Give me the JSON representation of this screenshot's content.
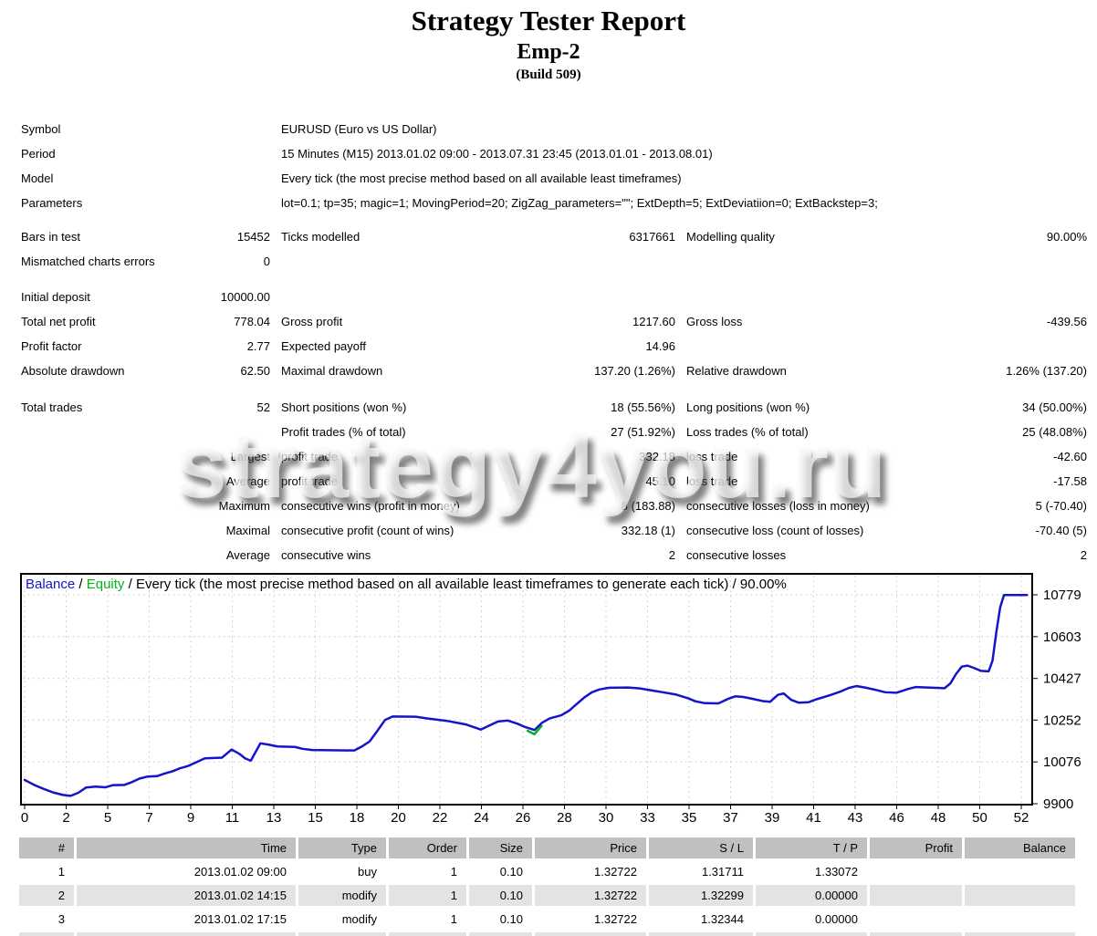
{
  "header": {
    "title": "Strategy Tester Report",
    "subtitle": "Emp-2",
    "build": "(Build 509)"
  },
  "watermark": {
    "text": "strategy4you.ru"
  },
  "info_rows": [
    {
      "label": "Symbol",
      "value": "EURUSD (Euro vs US Dollar)"
    },
    {
      "label": "Period",
      "value": "15 Minutes (M15) 2013.01.02 09:00 - 2013.07.31 23:45 (2013.01.01 - 2013.08.01)"
    },
    {
      "label": "Model",
      "value": "Every tick (the most precise method based on all available least timeframes)"
    },
    {
      "label": "Parameters",
      "value": "lot=0.1; tp=35; magic=1; MovingPeriod=20; ZigZag_parameters=\"\"; ExtDepth=5; ExtDeviatiion=0; ExtBackstep=3;"
    }
  ],
  "stats": {
    "groups": [
      {
        "name": "modelling",
        "rows": [
          [
            "Bars in test",
            "15452",
            "Ticks modelled",
            "6317661",
            "Modelling quality",
            "90.00%"
          ],
          [
            "Mismatched charts errors",
            "0",
            "",
            "",
            "",
            ""
          ]
        ]
      },
      {
        "name": "profit",
        "rows": [
          [
            "Initial deposit",
            "10000.00",
            "",
            "",
            "",
            ""
          ],
          [
            "Total net profit",
            "778.04",
            "Gross profit",
            "1217.60",
            "Gross loss",
            "-439.56"
          ],
          [
            "Profit factor",
            "2.77",
            "Expected payoff",
            "14.96",
            "",
            ""
          ],
          [
            "Absolute drawdown",
            "62.50",
            "Maximal drawdown",
            "137.20 (1.26%)",
            "Relative drawdown",
            "1.26% (137.20)"
          ]
        ]
      },
      {
        "name": "trades",
        "rows": [
          [
            "Total trades",
            "52",
            "Short positions (won %)",
            "18 (55.56%)",
            "Long positions (won %)",
            "34 (50.00%)"
          ],
          [
            "",
            "",
            "Profit trades (% of total)",
            "27 (51.92%)",
            "Loss trades (% of total)",
            "25 (48.08%)"
          ],
          [
            "",
            "Largest",
            "profit trade",
            "332.18",
            "loss trade",
            "-42.60"
          ],
          [
            "",
            "Average",
            "profit trade",
            "45.10",
            "loss trade",
            "-17.58"
          ],
          [
            "",
            "Maximum",
            "consecutive wins (profit in money)",
            "8 (183.88)",
            "consecutive losses (loss in money)",
            "5 (-70.40)"
          ],
          [
            "",
            "Maximal",
            "consecutive profit (count of wins)",
            "332.18 (1)",
            "consecutive loss (count of losses)",
            "-70.40 (5)"
          ],
          [
            "",
            "Average",
            "consecutive wins",
            "2",
            "consecutive losses",
            "2"
          ]
        ]
      }
    ]
  },
  "chart_data": {
    "type": "line",
    "legend": {
      "balance_label": "Balance",
      "separator1": " / ",
      "equity_label": "Equity",
      "description": " / Every tick (the most precise method based on all available least timeframes to generate each tick) / 90.00%"
    },
    "colors": {
      "balance": "#1414c8",
      "equity": "#00b41e",
      "grid": "#c6c6c6",
      "axis": "#000000"
    },
    "ylim": [
      9900,
      10875
    ],
    "xlim": [
      0,
      52.5
    ],
    "grid": true,
    "legend_position": "top-left",
    "y_ticks": [
      10779,
      10603,
      10427,
      10252,
      10076,
      9900
    ],
    "x_tick_labels": [
      "0",
      "2",
      "5",
      "7",
      "9",
      "11",
      "13",
      "15",
      "18",
      "20",
      "22",
      "24",
      "26",
      "28",
      "30",
      "33",
      "35",
      "37",
      "39",
      "41",
      "43",
      "46",
      "48",
      "50",
      "52"
    ],
    "initial_deposit": 10000.0,
    "final_balance": 10778.04,
    "series": [
      {
        "name": "Balance",
        "color": "#1414c8",
        "points": [
          [
            0,
            10000
          ],
          [
            0.5,
            9979
          ],
          [
            1,
            9962
          ],
          [
            1.5,
            9947
          ],
          [
            2,
            9937
          ],
          [
            2.4,
            9933
          ],
          [
            2.8,
            9946
          ],
          [
            3.2,
            9968
          ],
          [
            3.7,
            9972
          ],
          [
            4.2,
            9969
          ],
          [
            4.6,
            9978
          ],
          [
            5.2,
            9979
          ],
          [
            5.6,
            9991
          ],
          [
            6,
            10006
          ],
          [
            6.4,
            10014
          ],
          [
            6.9,
            10016
          ],
          [
            7.3,
            10027
          ],
          [
            7.7,
            10036
          ],
          [
            8.1,
            10049
          ],
          [
            8.5,
            10058
          ],
          [
            9,
            10076
          ],
          [
            9.4,
            10091
          ],
          [
            10.3,
            10094
          ],
          [
            10.8,
            10128
          ],
          [
            11.2,
            10110
          ],
          [
            11.5,
            10091
          ],
          [
            11.8,
            10081
          ],
          [
            12.3,
            10154
          ],
          [
            12.7,
            10149
          ],
          [
            13.2,
            10141
          ],
          [
            14.1,
            10139
          ],
          [
            14.5,
            10131
          ],
          [
            15,
            10126
          ],
          [
            17.2,
            10124
          ],
          [
            17.6,
            10141
          ],
          [
            18,
            10162
          ],
          [
            18.4,
            10206
          ],
          [
            18.8,
            10252
          ],
          [
            19.2,
            10267
          ],
          [
            20.4,
            10266
          ],
          [
            21,
            10259
          ],
          [
            22,
            10249
          ],
          [
            23,
            10234
          ],
          [
            23.8,
            10212
          ],
          [
            24.3,
            10231
          ],
          [
            24.7,
            10246
          ],
          [
            25.2,
            10250
          ],
          [
            25.7,
            10237
          ],
          [
            26.1,
            10223
          ],
          [
            26.6,
            10210
          ],
          [
            27,
            10241
          ],
          [
            27.4,
            10259
          ],
          [
            28,
            10272
          ],
          [
            28.4,
            10291
          ],
          [
            28.8,
            10319
          ],
          [
            29.2,
            10347
          ],
          [
            29.6,
            10369
          ],
          [
            30,
            10381
          ],
          [
            30.5,
            10388
          ],
          [
            31.5,
            10389
          ],
          [
            32.1,
            10385
          ],
          [
            32.7,
            10377
          ],
          [
            33.3,
            10369
          ],
          [
            34,
            10359
          ],
          [
            34.6,
            10344
          ],
          [
            35,
            10331
          ],
          [
            35.5,
            10323
          ],
          [
            36.2,
            10322
          ],
          [
            36.7,
            10341
          ],
          [
            37.1,
            10352
          ],
          [
            37.5,
            10349
          ],
          [
            38,
            10341
          ],
          [
            38.5,
            10332
          ],
          [
            38.9,
            10329
          ],
          [
            39.3,
            10358
          ],
          [
            39.6,
            10364
          ],
          [
            40,
            10337
          ],
          [
            40.4,
            10325
          ],
          [
            40.9,
            10327
          ],
          [
            41.3,
            10339
          ],
          [
            42,
            10356
          ],
          [
            42.6,
            10373
          ],
          [
            43,
            10387
          ],
          [
            43.4,
            10395
          ],
          [
            43.9,
            10388
          ],
          [
            44.4,
            10379
          ],
          [
            44.9,
            10369
          ],
          [
            45.5,
            10367
          ],
          [
            46.1,
            10383
          ],
          [
            46.5,
            10391
          ],
          [
            47.1,
            10389
          ],
          [
            48,
            10386
          ],
          [
            48.3,
            10406
          ],
          [
            48.6,
            10446
          ],
          [
            48.9,
            10477
          ],
          [
            49.2,
            10481
          ],
          [
            49.6,
            10469
          ],
          [
            49.9,
            10459
          ],
          [
            50.3,
            10457
          ],
          [
            50.5,
            10502
          ],
          [
            50.7,
            10622
          ],
          [
            50.9,
            10726
          ],
          [
            51.1,
            10778
          ],
          [
            52.3,
            10778
          ]
        ]
      },
      {
        "name": "Equity",
        "color": "#00b41e",
        "note": "coincides with Balance line; visible only at small dip near trade 26.6",
        "points": [
          [
            26.2,
            10216
          ],
          [
            26.6,
            10200
          ],
          [
            27,
            10238
          ]
        ]
      }
    ]
  },
  "trade_table": {
    "columns": [
      "#",
      "Time",
      "Type",
      "Order",
      "Size",
      "Price",
      "S / L",
      "T / P",
      "Profit",
      "Balance"
    ],
    "rows": [
      [
        "1",
        "2013.01.02 09:00",
        "buy",
        "1",
        "0.10",
        "1.32722",
        "1.31711",
        "1.33072",
        "",
        ""
      ],
      [
        "2",
        "2013.01.02 14:15",
        "modify",
        "1",
        "0.10",
        "1.32722",
        "1.32299",
        "0.00000",
        "",
        ""
      ],
      [
        "3",
        "2013.01.02 17:15",
        "modify",
        "1",
        "0.10",
        "1.32722",
        "1.32344",
        "0.00000",
        "",
        ""
      ],
      [
        "",
        "",
        "",
        "",
        "",
        "",
        "",
        "",
        "",
        ""
      ]
    ],
    "shaded_row_indices": [
      1,
      3
    ]
  }
}
